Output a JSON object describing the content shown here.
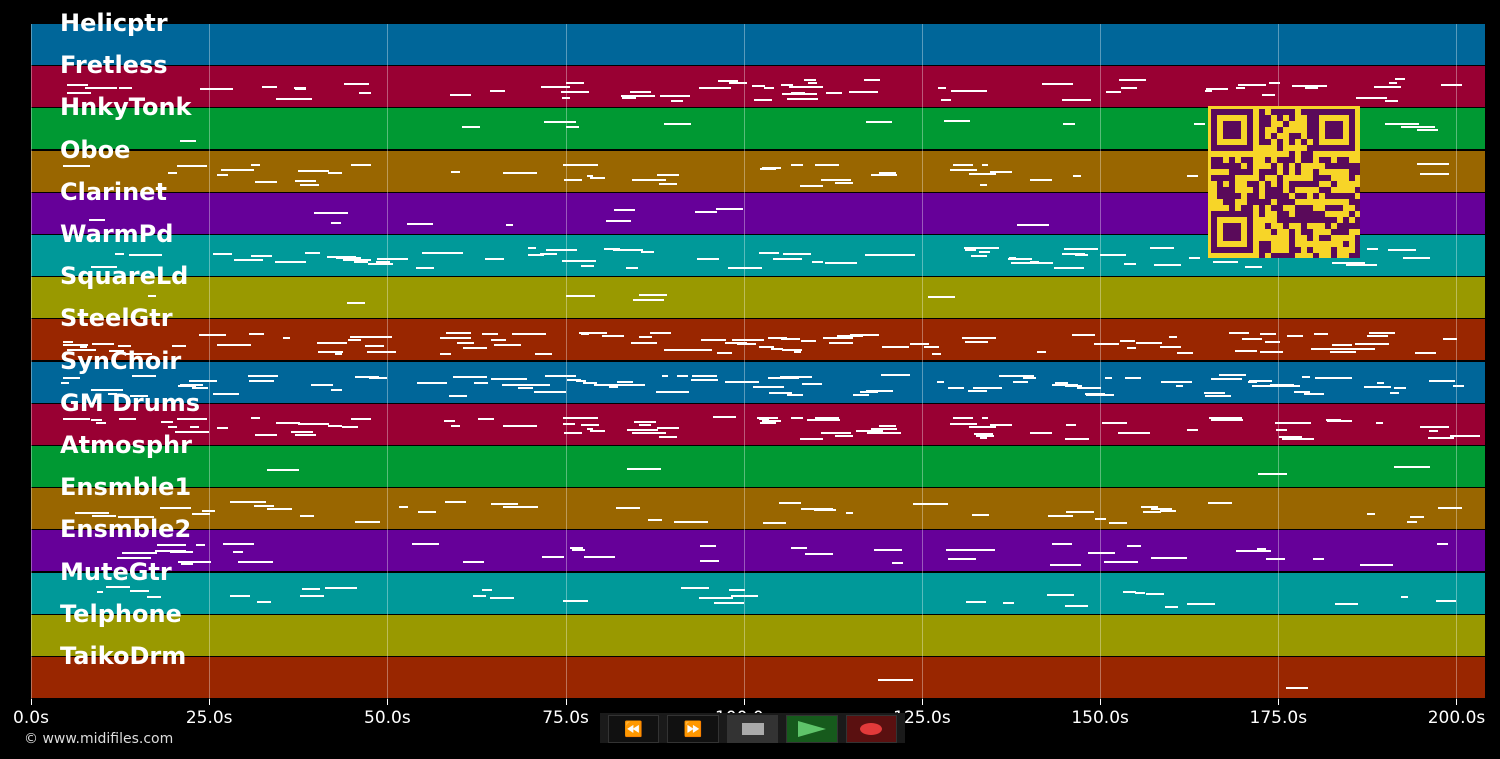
{
  "tracks": [
    {
      "name": "Helicptr",
      "color": "#006699"
    },
    {
      "name": "Fretless",
      "color": "#990033"
    },
    {
      "name": "HnkyTonk",
      "color": "#009933"
    },
    {
      "name": "Oboe",
      "color": "#996600"
    },
    {
      "name": "Clarinet",
      "color": "#660099"
    },
    {
      "name": "WarmPd",
      "color": "#009999"
    },
    {
      "name": "SquareLd",
      "color": "#999900"
    },
    {
      "name": "SteelGtr",
      "color": "#992600"
    },
    {
      "name": "SynChoir",
      "color": "#006699"
    },
    {
      "name": "GM Drums",
      "color": "#990033"
    },
    {
      "name": "Atmosphr",
      "color": "#009933"
    },
    {
      "name": "Ensmble1",
      "color": "#996600"
    },
    {
      "name": "Ensmble2",
      "color": "#660099"
    },
    {
      "name": "MuteGtr",
      "color": "#009999"
    },
    {
      "name": "Telphone",
      "color": "#999900"
    },
    {
      "name": "TaikoDrm",
      "color": "#992600"
    }
  ],
  "time_axis": {
    "ticks": [
      "0.0s",
      "25.0s",
      "50.0s",
      "75.0s",
      "100.0s",
      "125.0s",
      "150.0s",
      "175.0s",
      "200.0s"
    ],
    "values": [
      0,
      25,
      50,
      75,
      100,
      125,
      150,
      175,
      200
    ],
    "max": 204
  },
  "transport": {
    "rewind": "⏪",
    "forward": "⏩"
  },
  "qr_color": "#f7d528",
  "qr_dark": "#5a0a5a",
  "copyright": "© www.midifiles.com"
}
